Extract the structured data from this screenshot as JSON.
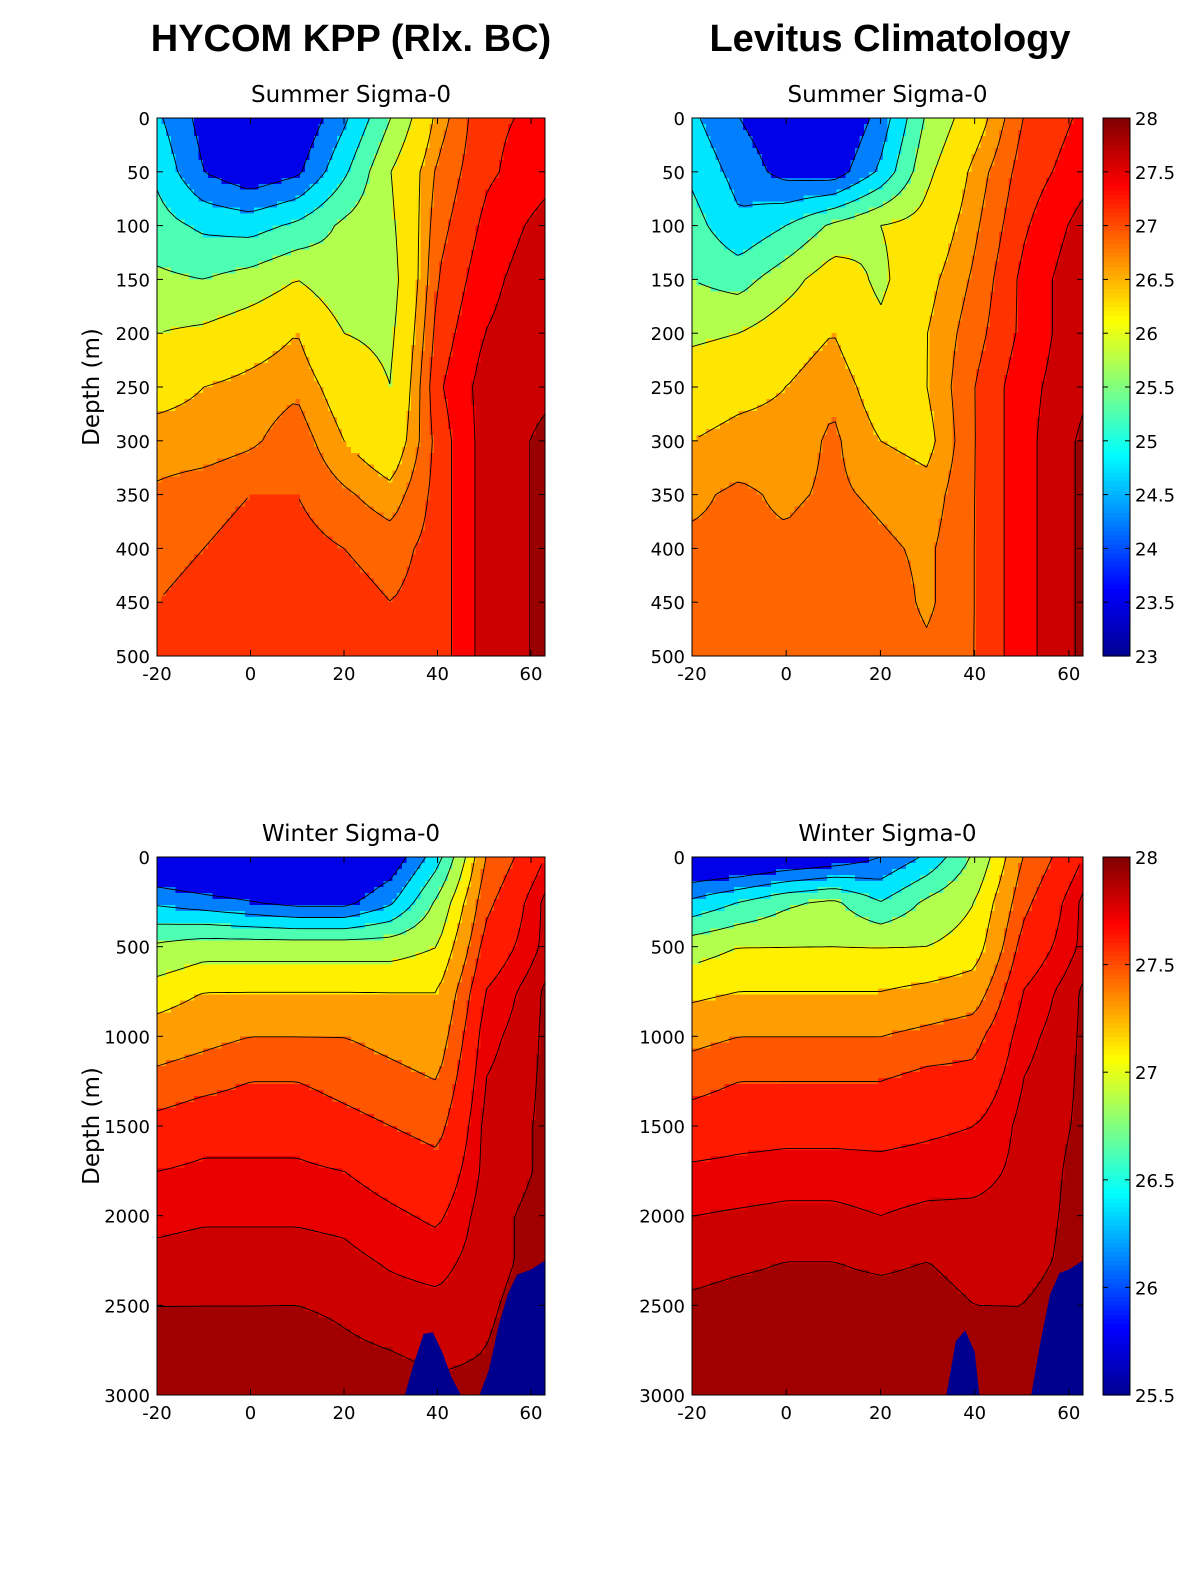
{
  "column_titles": [
    "HYCOM KPP (Rlx. BC)",
    "Levitus Climatology"
  ],
  "colors": {
    "jet": [
      "#00008f",
      "#0000ff",
      "#0080ff",
      "#00ffff",
      "#80ff80",
      "#ffff00",
      "#ff8000",
      "#ff0000",
      "#800000"
    ],
    "contour_line": "#000000",
    "topography": "#00008f"
  },
  "chart_data": [
    {
      "type": "heatmap",
      "title": "Summer Sigma-0",
      "column": "HYCOM KPP (Rlx. BC)",
      "xlabel": "",
      "ylabel": "Depth (m)",
      "xlim": [
        -20,
        63
      ],
      "ylim": [
        500,
        0
      ],
      "xticks": [
        -20,
        0,
        20,
        40,
        60
      ],
      "yticks": [
        0,
        50,
        100,
        150,
        200,
        250,
        300,
        350,
        400,
        450,
        500
      ],
      "colorbar": null,
      "field": {
        "x": [
          -20,
          -10,
          0,
          10,
          20,
          30,
          40,
          50,
          63
        ],
        "depth": [
          0,
          50,
          100,
          150,
          200,
          250,
          300,
          350,
          400,
          450,
          500
        ],
        "values": [
          [
            24.6,
            23.8,
            23.3,
            23.5,
            24.4,
            25.5,
            26.6,
            27.2,
            27.3
          ],
          [
            24.9,
            24.0,
            23.6,
            23.9,
            24.9,
            26.0,
            26.8,
            27.2,
            27.4
          ],
          [
            25.2,
            24.9,
            24.8,
            25.1,
            25.6,
            25.9,
            26.9,
            27.3,
            27.6
          ],
          [
            25.6,
            25.5,
            25.7,
            26.0,
            25.7,
            25.8,
            27.0,
            27.4,
            27.7
          ],
          [
            26.0,
            26.1,
            26.3,
            26.5,
            26.0,
            25.9,
            27.1,
            27.5,
            27.7
          ],
          [
            26.4,
            26.5,
            26.6,
            26.7,
            26.3,
            26.0,
            27.2,
            27.6,
            27.7
          ],
          [
            26.6,
            26.6,
            26.7,
            26.9,
            26.5,
            26.2,
            27.1,
            27.6,
            27.8
          ],
          [
            26.8,
            26.9,
            27.0,
            27.0,
            26.8,
            26.6,
            27.1,
            27.6,
            27.8
          ],
          [
            26.9,
            27.0,
            27.1,
            27.1,
            27.0,
            26.9,
            27.1,
            27.6,
            27.8
          ],
          [
            27.0,
            27.1,
            27.2,
            27.1,
            27.1,
            27.0,
            27.1,
            27.6,
            27.8
          ],
          [
            27.0,
            27.1,
            27.2,
            27.2,
            27.1,
            27.0,
            27.1,
            27.6,
            27.8
          ]
        ],
        "vmin": 23,
        "vmax": 28,
        "contour_levels": [
          24.0,
          24.5,
          25.0,
          25.5,
          26.0,
          26.5,
          26.75,
          27.0,
          27.25,
          27.5,
          27.75
        ],
        "seafloor": null
      }
    },
    {
      "type": "heatmap",
      "title": "Summer Sigma-0",
      "column": "Levitus Climatology",
      "xlabel": "",
      "ylabel": "",
      "xlim": [
        -20,
        63
      ],
      "ylim": [
        500,
        0
      ],
      "xticks": [
        -20,
        0,
        20,
        40,
        60
      ],
      "yticks": [
        0,
        50,
        100,
        150,
        200,
        250,
        300,
        350,
        400,
        450,
        500
      ],
      "colorbar": {
        "min": 23,
        "max": 28,
        "ticks": [
          23,
          23.5,
          24,
          24.5,
          25,
          25.5,
          26,
          26.5,
          27,
          27.5,
          28
        ]
      },
      "field": {
        "x": [
          -20,
          -10,
          0,
          10,
          20,
          30,
          40,
          50,
          63
        ],
        "depth": [
          0,
          50,
          100,
          150,
          200,
          250,
          300,
          350,
          400,
          450,
          500
        ],
        "values": [
          [
            24.6,
            24.0,
            23.6,
            23.3,
            24.2,
            25.6,
            26.3,
            27.0,
            27.3
          ],
          [
            24.9,
            24.3,
            23.8,
            23.7,
            24.6,
            25.9,
            26.6,
            27.1,
            27.4
          ],
          [
            25.2,
            24.6,
            25.0,
            25.6,
            26.0,
            26.2,
            26.7,
            27.2,
            27.6
          ],
          [
            25.5,
            25.3,
            25.8,
            26.3,
            25.9,
            26.4,
            26.8,
            27.3,
            27.7
          ],
          [
            25.9,
            26.0,
            26.3,
            26.5,
            26.1,
            26.5,
            26.9,
            27.3,
            27.7
          ],
          [
            26.3,
            26.4,
            26.5,
            26.7,
            26.3,
            26.5,
            27.0,
            27.4,
            27.7
          ],
          [
            26.5,
            26.6,
            26.6,
            26.8,
            26.5,
            26.4,
            27.0,
            27.4,
            27.8
          ],
          [
            26.7,
            26.8,
            26.7,
            26.8,
            26.7,
            26.6,
            27.0,
            27.4,
            27.8
          ],
          [
            26.8,
            26.8,
            26.8,
            26.9,
            26.8,
            26.7,
            27.0,
            27.4,
            27.8
          ],
          [
            26.8,
            26.9,
            26.8,
            26.9,
            26.9,
            26.7,
            27.0,
            27.4,
            27.8
          ],
          [
            26.8,
            26.9,
            26.9,
            26.9,
            26.9,
            26.8,
            27.0,
            27.4,
            27.8
          ]
        ],
        "vmin": 23,
        "vmax": 28,
        "contour_levels": [
          24.0,
          24.5,
          25.0,
          25.5,
          26.0,
          26.5,
          26.75,
          27.0,
          27.25,
          27.5,
          27.75
        ],
        "seafloor": null
      }
    },
    {
      "type": "heatmap",
      "title": "Winter Sigma-0",
      "column": "HYCOM KPP (Rlx. BC)",
      "xlabel": "",
      "ylabel": "Depth (m)",
      "xlim": [
        -20,
        63
      ],
      "ylim": [
        3000,
        0
      ],
      "xticks": [
        -20,
        0,
        20,
        40,
        60
      ],
      "yticks": [
        0,
        500,
        1000,
        1500,
        2000,
        2500,
        3000
      ],
      "colorbar": null,
      "field": {
        "x": [
          -20,
          -10,
          0,
          10,
          20,
          30,
          40,
          50,
          63
        ],
        "depth": [
          0,
          250,
          500,
          750,
          1000,
          1250,
          1500,
          1750,
          2000,
          2250,
          2500,
          2750,
          3000
        ],
        "values": [
          [
            25.6,
            25.5,
            25.5,
            25.5,
            25.6,
            25.8,
            26.4,
            27.4,
            27.7
          ],
          [
            26.2,
            26.1,
            26.0,
            25.9,
            25.9,
            26.2,
            26.8,
            27.5,
            27.8
          ],
          [
            26.8,
            26.9,
            26.9,
            26.9,
            26.9,
            26.9,
            27.0,
            27.6,
            27.8
          ],
          [
            27.1,
            27.2,
            27.2,
            27.2,
            27.2,
            27.2,
            27.2,
            27.7,
            27.85
          ],
          [
            27.3,
            27.35,
            27.4,
            27.4,
            27.4,
            27.35,
            27.3,
            27.75,
            27.85
          ],
          [
            27.45,
            27.5,
            27.55,
            27.55,
            27.5,
            27.45,
            27.4,
            27.78,
            27.85
          ],
          [
            27.6,
            27.65,
            27.65,
            27.65,
            27.6,
            27.55,
            27.5,
            27.8,
            27.85
          ],
          [
            27.7,
            27.72,
            27.72,
            27.72,
            27.7,
            27.65,
            27.6,
            27.8,
            27.85
          ],
          [
            27.76,
            27.77,
            27.77,
            27.77,
            27.76,
            27.72,
            27.68,
            27.82,
            27.86
          ],
          [
            27.8,
            27.81,
            27.81,
            27.81,
            27.8,
            27.77,
            27.75,
            27.82,
            27.86
          ],
          [
            27.84,
            27.84,
            27.84,
            27.84,
            27.83,
            27.81,
            27.8,
            27.83,
            27.87
          ],
          [
            27.86,
            27.86,
            27.86,
            27.87,
            27.85,
            27.84,
            27.83,
            27.84,
            27.87
          ],
          [
            27.88,
            27.88,
            27.88,
            27.89,
            27.87,
            27.86,
            27.85,
            27.85,
            27.88
          ]
        ],
        "vmin": 25.5,
        "vmax": 28,
        "contour_levels": [
          26.0,
          26.25,
          26.5,
          26.75,
          27.0,
          27.2,
          27.4,
          27.55,
          27.7,
          27.78,
          27.84
        ],
        "seafloor": {
          "x": [
            33,
            35,
            37,
            39,
            41,
            43,
            45,
            49,
            51,
            53,
            55,
            57,
            60,
            63
          ],
          "depth": [
            3000,
            2820,
            2660,
            2650,
            2760,
            2900,
            3000,
            3000,
            2860,
            2620,
            2440,
            2330,
            2300,
            2250
          ]
        }
      }
    },
    {
      "type": "heatmap",
      "title": "Winter Sigma-0",
      "column": "Levitus Climatology",
      "xlabel": "",
      "ylabel": "",
      "xlim": [
        -20,
        63
      ],
      "ylim": [
        3000,
        0
      ],
      "xticks": [
        -20,
        0,
        20,
        40,
        60
      ],
      "yticks": [
        0,
        500,
        1000,
        1500,
        2000,
        2500,
        3000
      ],
      "colorbar": {
        "min": 25.5,
        "max": 28,
        "ticks": [
          25.5,
          26,
          26.5,
          27,
          27.5,
          28
        ]
      },
      "field": {
        "x": [
          -20,
          -10,
          0,
          10,
          20,
          30,
          40,
          50,
          63
        ],
        "depth": [
          0,
          250,
          500,
          750,
          1000,
          1250,
          1500,
          1750,
          2000,
          2250,
          2500,
          2750,
          3000
        ],
        "values": [
          [
            25.6,
            25.6,
            25.7,
            25.8,
            26.0,
            26.3,
            26.8,
            27.4,
            27.7
          ],
          [
            26.3,
            26.5,
            26.7,
            26.8,
            26.5,
            26.8,
            27.0,
            27.5,
            27.8
          ],
          [
            26.9,
            27.0,
            27.0,
            27.0,
            27.0,
            27.0,
            27.1,
            27.6,
            27.8
          ],
          [
            27.15,
            27.2,
            27.2,
            27.2,
            27.2,
            27.25,
            27.3,
            27.7,
            27.85
          ],
          [
            27.35,
            27.4,
            27.4,
            27.4,
            27.4,
            27.45,
            27.5,
            27.75,
            27.85
          ],
          [
            27.5,
            27.55,
            27.55,
            27.55,
            27.55,
            27.6,
            27.6,
            27.78,
            27.85
          ],
          [
            27.62,
            27.65,
            27.66,
            27.66,
            27.66,
            27.68,
            27.7,
            27.8,
            27.85
          ],
          [
            27.72,
            27.73,
            27.74,
            27.74,
            27.73,
            27.74,
            27.75,
            27.8,
            27.86
          ],
          [
            27.78,
            27.79,
            27.8,
            27.8,
            27.78,
            27.8,
            27.8,
            27.81,
            27.86
          ],
          [
            27.82,
            27.83,
            27.84,
            27.84,
            27.83,
            27.84,
            27.82,
            27.82,
            27.86
          ],
          [
            27.85,
            27.86,
            27.86,
            27.86,
            27.86,
            27.86,
            27.84,
            27.84,
            27.87
          ],
          [
            27.87,
            27.87,
            27.87,
            27.87,
            27.87,
            27.87,
            27.86,
            27.85,
            27.87
          ],
          [
            27.88,
            27.88,
            27.88,
            27.88,
            27.88,
            27.88,
            27.87,
            27.86,
            27.88
          ]
        ],
        "vmin": 25.5,
        "vmax": 28,
        "contour_levels": [
          26.0,
          26.25,
          26.5,
          26.75,
          27.0,
          27.2,
          27.4,
          27.55,
          27.7,
          27.78,
          27.84
        ],
        "seafloor": {
          "x": [
            34,
            36,
            38,
            40,
            41,
            43,
            52,
            54,
            56,
            58,
            60,
            63
          ],
          "depth": [
            3000,
            2700,
            2640,
            2760,
            3000,
            3000,
            3000,
            2700,
            2440,
            2320,
            2300,
            2250
          ]
        }
      }
    }
  ]
}
